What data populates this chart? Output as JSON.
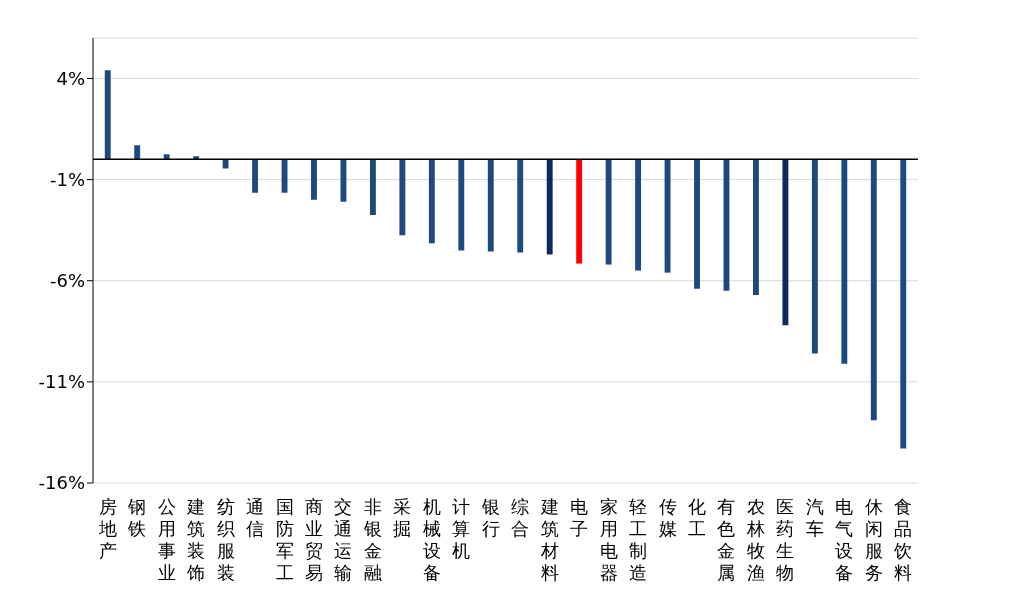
{
  "chart_data": {
    "type": "bar",
    "categories": [
      "房地产",
      "钢铁",
      "公用事业",
      "建筑装饰",
      "纺织服装",
      "通信",
      "国防军工",
      "商业贸易",
      "交通运输",
      "非银金融",
      "采掘",
      "机械设备",
      "计算机",
      "银行",
      "综合",
      "建筑材料",
      "电子",
      "家用电器",
      "轻工制造",
      "传媒",
      "化工",
      "有色金属",
      "农林牧渔",
      "医药生物",
      "汽车",
      "电气设备",
      "休闲服务",
      "食品饮料"
    ],
    "values": [
      4.4,
      0.7,
      0.25,
      0.15,
      -0.45,
      -1.65,
      -1.65,
      -2.0,
      -2.1,
      -2.75,
      -3.75,
      -4.15,
      -4.5,
      -4.55,
      -4.6,
      -4.7,
      -5.15,
      -5.2,
      -5.5,
      -5.6,
      -6.4,
      -6.5,
      -6.7,
      -8.2,
      -9.6,
      -10.1,
      -12.9,
      -14.3
    ],
    "colors": [
      "#1f497d",
      "#1f497d",
      "#1f497d",
      "#1f497d",
      "#1f497d",
      "#1f497d",
      "#1f497d",
      "#1f497d",
      "#1f497d",
      "#1f497d",
      "#1f497d",
      "#1f497d",
      "#1f497d",
      "#1f497d",
      "#1f497d",
      "#0c2a5e",
      "#ff0000",
      "#1f497d",
      "#1f497d",
      "#1f497d",
      "#1f497d",
      "#1f497d",
      "#1f497d",
      "#0c2a5e",
      "#1f497d",
      "#1f497d",
      "#1f497d",
      "#1f497d"
    ],
    "ylim": [
      -16,
      6
    ],
    "yticks": [
      {
        "value": 4,
        "label": "4%"
      },
      {
        "value": -1,
        "label": "-1%"
      },
      {
        "value": -6,
        "label": "-6%"
      },
      {
        "value": -11,
        "label": "-11%"
      },
      {
        "value": -16,
        "label": "-16%"
      }
    ],
    "grid": "y"
  }
}
